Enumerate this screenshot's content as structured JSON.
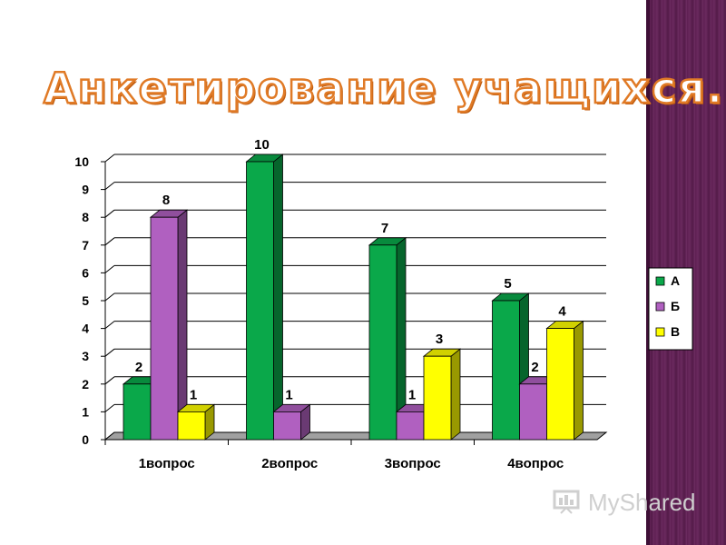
{
  "slide": {
    "title": "Анкетирование учащихся.",
    "watermark": "MyShared"
  },
  "colors": {
    "side_band": "#5e1f52",
    "title_outline": "#e07a26"
  },
  "chart_data": {
    "type": "bar",
    "categories": [
      "1вопрос",
      "2вопрос",
      "3вопрос",
      "4вопрос"
    ],
    "series": [
      {
        "name": "А",
        "color": "#0aa84a",
        "values": [
          2,
          10,
          7,
          5
        ]
      },
      {
        "name": "Б",
        "color": "#b060c0",
        "values": [
          8,
          1,
          1,
          2
        ]
      },
      {
        "name": "В",
        "color": "#ffff00",
        "values": [
          1,
          null,
          3,
          4
        ]
      }
    ],
    "data_labels": [
      [
        "2",
        "10",
        "7",
        "5"
      ],
      [
        "8",
        "1",
        "1",
        "2"
      ],
      [
        "1",
        "",
        "3",
        "4"
      ]
    ],
    "y_ticks": [
      "0",
      "1",
      "2",
      "3",
      "4",
      "5",
      "6",
      "7",
      "8",
      "9",
      "10"
    ],
    "ylim": [
      0,
      10
    ],
    "grid": true,
    "legend": "right",
    "three_d": true
  }
}
